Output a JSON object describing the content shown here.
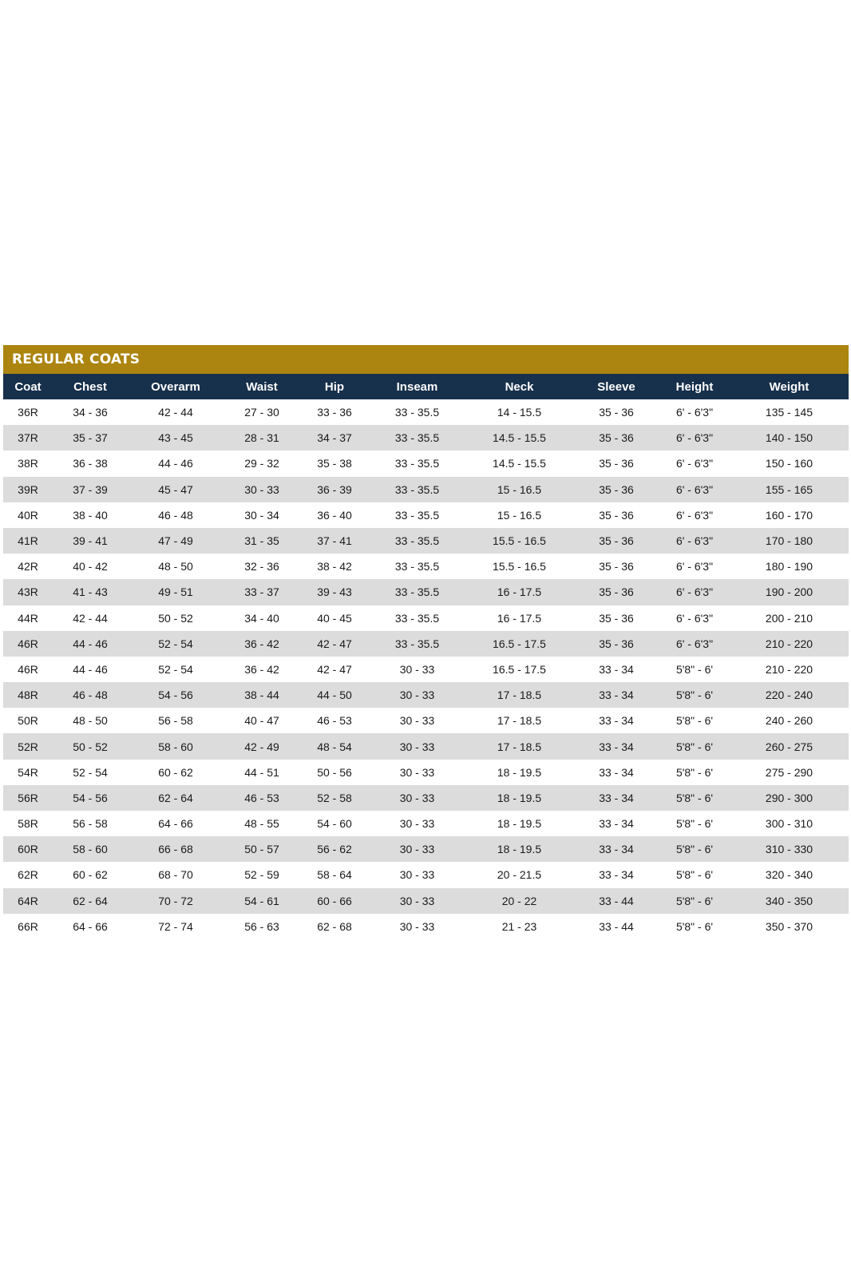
{
  "title": "REGULAR COATS",
  "colors": {
    "title_bar": "#ac8510",
    "header_row": "#17304b",
    "stripe": "#dcdcdc"
  },
  "columns": [
    "Coat",
    "Chest",
    "Overarm",
    "Waist",
    "Hip",
    "Inseam",
    "Neck",
    "Sleeve",
    "Height",
    "Weight"
  ],
  "rows": [
    [
      "36R",
      "34 - 36",
      "42 - 44",
      "27 - 30",
      "33 - 36",
      "33 - 35.5",
      "14 - 15.5",
      "35 - 36",
      "6' - 6'3\"",
      "135 - 145"
    ],
    [
      "37R",
      "35 - 37",
      "43 - 45",
      "28 - 31",
      "34 - 37",
      "33 - 35.5",
      "14.5 - 15.5",
      "35 - 36",
      "6' - 6'3\"",
      "140 - 150"
    ],
    [
      "38R",
      "36 - 38",
      "44 - 46",
      "29 - 32",
      "35 - 38",
      "33 - 35.5",
      "14.5 - 15.5",
      "35 - 36",
      "6' - 6'3\"",
      "150 - 160"
    ],
    [
      "39R",
      "37 - 39",
      "45 - 47",
      "30 - 33",
      "36 - 39",
      "33 - 35.5",
      "15 - 16.5",
      "35 - 36",
      "6' - 6'3\"",
      "155 - 165"
    ],
    [
      "40R",
      "38 - 40",
      "46 - 48",
      "30 - 34",
      "36 - 40",
      "33 - 35.5",
      "15 - 16.5",
      "35 - 36",
      "6' - 6'3\"",
      "160 - 170"
    ],
    [
      "41R",
      "39 - 41",
      "47 - 49",
      "31 - 35",
      "37 - 41",
      "33 - 35.5",
      "15.5 - 16.5",
      "35 - 36",
      "6' - 6'3\"",
      "170 - 180"
    ],
    [
      "42R",
      "40 - 42",
      "48 - 50",
      "32 - 36",
      "38 - 42",
      "33 - 35.5",
      "15.5 - 16.5",
      "35 - 36",
      "6' - 6'3\"",
      "180 - 190"
    ],
    [
      "43R",
      "41 - 43",
      "49 - 51",
      "33 - 37",
      "39 - 43",
      "33 - 35.5",
      "16 - 17.5",
      "35 - 36",
      "6' - 6'3\"",
      "190 - 200"
    ],
    [
      "44R",
      "42 - 44",
      "50 - 52",
      "34 - 40",
      "40 - 45",
      "33 - 35.5",
      "16 - 17.5",
      "35 - 36",
      "6' - 6'3\"",
      "200 - 210"
    ],
    [
      "46R",
      "44 - 46",
      "52 - 54",
      "36 - 42",
      "42 - 47",
      "33 - 35.5",
      "16.5 - 17.5",
      "35 - 36",
      "6' - 6'3\"",
      "210 - 220"
    ],
    [
      "46R",
      "44 - 46",
      "52 - 54",
      "36 - 42",
      "42 - 47",
      "30 - 33",
      "16.5 - 17.5",
      "33 - 34",
      "5'8\" - 6'",
      "210 - 220"
    ],
    [
      "48R",
      "46 - 48",
      "54 - 56",
      "38 - 44",
      "44 - 50",
      "30 - 33",
      "17 - 18.5",
      "33 - 34",
      "5'8\" - 6'",
      "220 - 240"
    ],
    [
      "50R",
      "48 - 50",
      "56 - 58",
      "40 - 47",
      "46 - 53",
      "30 - 33",
      "17 - 18.5",
      "33 - 34",
      "5'8\" - 6'",
      "240 - 260"
    ],
    [
      "52R",
      "50 - 52",
      "58 - 60",
      "42 - 49",
      "48 - 54",
      "30 - 33",
      "17 - 18.5",
      "33 - 34",
      "5'8\" - 6'",
      "260 - 275"
    ],
    [
      "54R",
      "52 - 54",
      "60 - 62",
      "44 - 51",
      "50 - 56",
      "30 - 33",
      "18 - 19.5",
      "33 - 34",
      "5'8\" - 6'",
      "275 - 290"
    ],
    [
      "56R",
      "54 - 56",
      "62 - 64",
      "46 - 53",
      "52 - 58",
      "30 - 33",
      "18 - 19.5",
      "33 - 34",
      "5'8\" - 6'",
      "290 - 300"
    ],
    [
      "58R",
      "56 - 58",
      "64 - 66",
      "48 - 55",
      "54 - 60",
      "30 - 33",
      "18 - 19.5",
      "33 - 34",
      "5'8\" - 6'",
      "300 - 310"
    ],
    [
      "60R",
      "58 - 60",
      "66 - 68",
      "50 - 57",
      "56 - 62",
      "30 - 33",
      "18 - 19.5",
      "33 - 34",
      "5'8\" - 6'",
      "310 - 330"
    ],
    [
      "62R",
      "60 - 62",
      "68 - 70",
      "52 - 59",
      "58 - 64",
      "30 - 33",
      "20 - 21.5",
      "33 - 34",
      "5'8\" - 6'",
      "320 - 340"
    ],
    [
      "64R",
      "62 - 64",
      "70 - 72",
      "54 - 61",
      "60 - 66",
      "30 - 33",
      "20 - 22",
      "33 - 44",
      "5'8\" - 6'",
      "340 - 350"
    ],
    [
      "66R",
      "64 - 66",
      "72 - 74",
      "56 - 63",
      "62 - 68",
      "30 - 33",
      "21 - 23",
      "33 - 44",
      "5'8\" - 6'",
      "350 - 370"
    ]
  ]
}
